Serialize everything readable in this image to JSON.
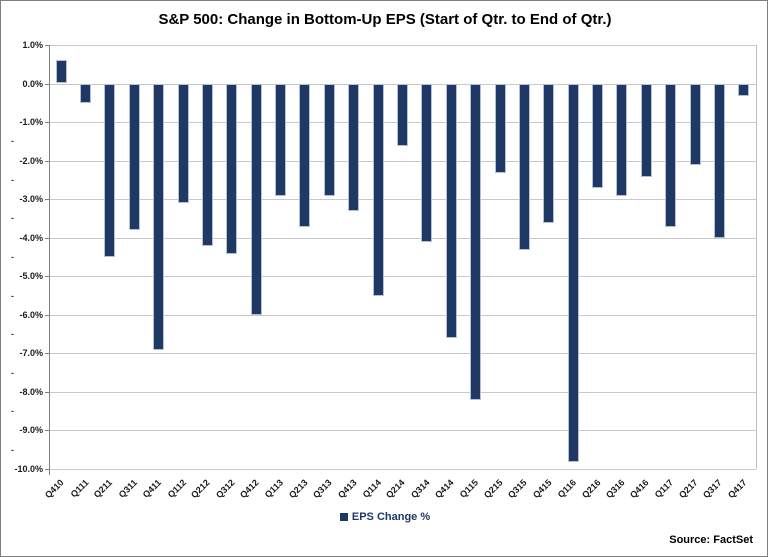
{
  "title": "S&P 500: Change in Bottom-Up EPS (Start of Qtr. to End of Qtr.)",
  "source": "Source: FactSet",
  "legend": {
    "label": "EPS Change %",
    "marker_color": "#1f3864"
  },
  "colors": {
    "bar": "#1f3864",
    "bar_border": "#b4c0da",
    "gridline": "#c9c9c9",
    "axis": "#7f7f7f",
    "text": "#1a1a1a"
  },
  "chart_data": {
    "type": "bar",
    "title": "S&P 500: Change in Bottom-Up EPS (Start of Qtr. to End of Qtr.)",
    "xlabel": "",
    "ylabel": "",
    "categories": [
      "Q410",
      "Q111",
      "Q211",
      "Q311",
      "Q411",
      "Q112",
      "Q212",
      "Q312",
      "Q412",
      "Q113",
      "Q213",
      "Q313",
      "Q413",
      "Q114",
      "Q214",
      "Q314",
      "Q414",
      "Q115",
      "Q215",
      "Q315",
      "Q415",
      "Q116",
      "Q216",
      "Q316",
      "Q416",
      "Q117",
      "Q217",
      "Q317",
      "Q417"
    ],
    "series": [
      {
        "name": "EPS Change %",
        "values": [
          0.6,
          -0.5,
          -4.5,
          -3.8,
          -6.9,
          -3.1,
          -4.2,
          -4.4,
          -6.0,
          -2.9,
          -3.7,
          -2.9,
          -3.3,
          -5.5,
          -1.6,
          -4.1,
          -6.6,
          -8.2,
          -2.3,
          -4.3,
          -3.6,
          -9.8,
          -2.7,
          -2.9,
          -2.4,
          -3.7,
          -2.1,
          -4.0,
          -0.3
        ]
      }
    ],
    "ylim": [
      -10,
      1
    ],
    "y_tick_step": 1,
    "y_axis": {
      "tick_labels": [
        "1.0%",
        "0.0%",
        "-1.0%",
        "-2.0%",
        "-3.0%",
        "-4.0%",
        "-5.0%",
        "-6.0%",
        "-7.0%",
        "-8.0%",
        "-9.0%",
        "-10.0%"
      ],
      "minor_tick_glyph": "-",
      "minor_tick_values": [
        -1.5,
        -2.5,
        -3.5,
        -4.5,
        -5.5,
        -6.5,
        -7.5,
        -8.5,
        -9.5
      ]
    },
    "grid": true,
    "legend_position": "bottom-center"
  }
}
